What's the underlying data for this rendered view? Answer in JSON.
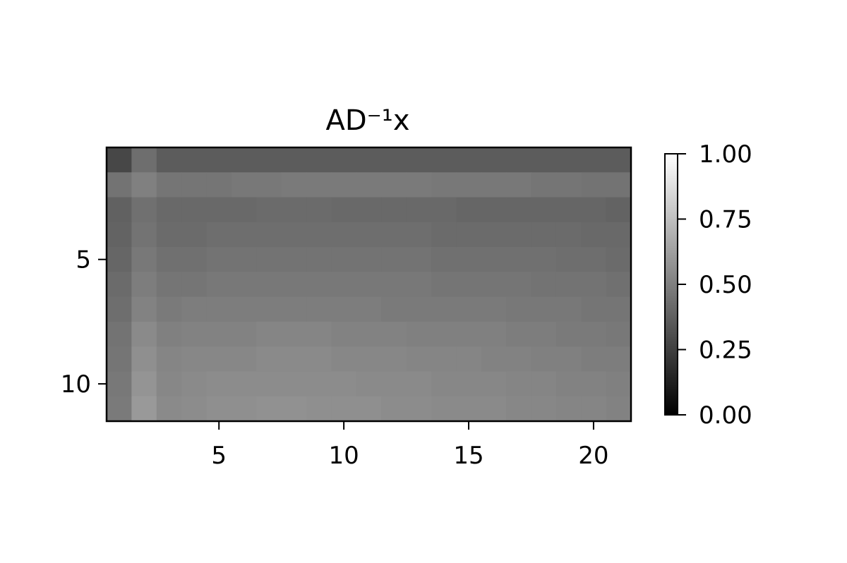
{
  "chart_data": {
    "type": "heatmap",
    "title": "AD⁻¹x",
    "xlabel": "",
    "ylabel": "",
    "colormap": "gray",
    "n_rows": 11,
    "n_cols": 21,
    "x_ticks": [
      5,
      10,
      15,
      20
    ],
    "y_ticks": [
      5,
      10
    ],
    "colorbar": {
      "range": [
        0.0,
        1.0
      ],
      "ticks": [
        0.0,
        0.25,
        0.5,
        0.75,
        1.0
      ],
      "tick_labels": [
        "0.00",
        "0.25",
        "0.50",
        "0.75",
        "1.00"
      ]
    },
    "values": [
      [
        0.28,
        0.43,
        0.36,
        0.36,
        0.36,
        0.36,
        0.36,
        0.36,
        0.36,
        0.36,
        0.36,
        0.36,
        0.36,
        0.36,
        0.36,
        0.36,
        0.36,
        0.36,
        0.36,
        0.36,
        0.36
      ],
      [
        0.45,
        0.5,
        0.46,
        0.46,
        0.46,
        0.47,
        0.47,
        0.48,
        0.48,
        0.48,
        0.48,
        0.48,
        0.48,
        0.47,
        0.47,
        0.47,
        0.47,
        0.46,
        0.46,
        0.45,
        0.45
      ],
      [
        0.38,
        0.44,
        0.41,
        0.41,
        0.41,
        0.41,
        0.42,
        0.42,
        0.42,
        0.41,
        0.41,
        0.41,
        0.41,
        0.41,
        0.4,
        0.4,
        0.4,
        0.4,
        0.4,
        0.4,
        0.39
      ],
      [
        0.39,
        0.45,
        0.42,
        0.42,
        0.43,
        0.43,
        0.43,
        0.43,
        0.43,
        0.43,
        0.43,
        0.43,
        0.43,
        0.42,
        0.42,
        0.42,
        0.42,
        0.42,
        0.42,
        0.41,
        0.41
      ],
      [
        0.4,
        0.47,
        0.44,
        0.44,
        0.45,
        0.45,
        0.45,
        0.45,
        0.45,
        0.45,
        0.45,
        0.45,
        0.45,
        0.44,
        0.44,
        0.44,
        0.44,
        0.44,
        0.43,
        0.43,
        0.42
      ],
      [
        0.42,
        0.49,
        0.46,
        0.46,
        0.47,
        0.47,
        0.47,
        0.47,
        0.47,
        0.47,
        0.47,
        0.47,
        0.47,
        0.46,
        0.46,
        0.46,
        0.46,
        0.45,
        0.45,
        0.45,
        0.44
      ],
      [
        0.43,
        0.51,
        0.48,
        0.49,
        0.49,
        0.49,
        0.49,
        0.49,
        0.49,
        0.49,
        0.49,
        0.48,
        0.48,
        0.48,
        0.48,
        0.48,
        0.47,
        0.47,
        0.47,
        0.46,
        0.46
      ],
      [
        0.45,
        0.54,
        0.5,
        0.51,
        0.51,
        0.51,
        0.52,
        0.52,
        0.52,
        0.51,
        0.51,
        0.51,
        0.5,
        0.5,
        0.5,
        0.5,
        0.49,
        0.49,
        0.48,
        0.48,
        0.47
      ],
      [
        0.46,
        0.56,
        0.52,
        0.53,
        0.53,
        0.53,
        0.54,
        0.54,
        0.54,
        0.53,
        0.53,
        0.53,
        0.52,
        0.52,
        0.52,
        0.51,
        0.51,
        0.5,
        0.5,
        0.49,
        0.49
      ],
      [
        0.47,
        0.58,
        0.53,
        0.54,
        0.55,
        0.55,
        0.55,
        0.55,
        0.55,
        0.55,
        0.54,
        0.54,
        0.54,
        0.53,
        0.53,
        0.53,
        0.52,
        0.52,
        0.51,
        0.51,
        0.5
      ],
      [
        0.48,
        0.6,
        0.54,
        0.55,
        0.56,
        0.56,
        0.57,
        0.57,
        0.56,
        0.56,
        0.56,
        0.55,
        0.55,
        0.54,
        0.54,
        0.54,
        0.53,
        0.53,
        0.52,
        0.52,
        0.51
      ]
    ]
  }
}
